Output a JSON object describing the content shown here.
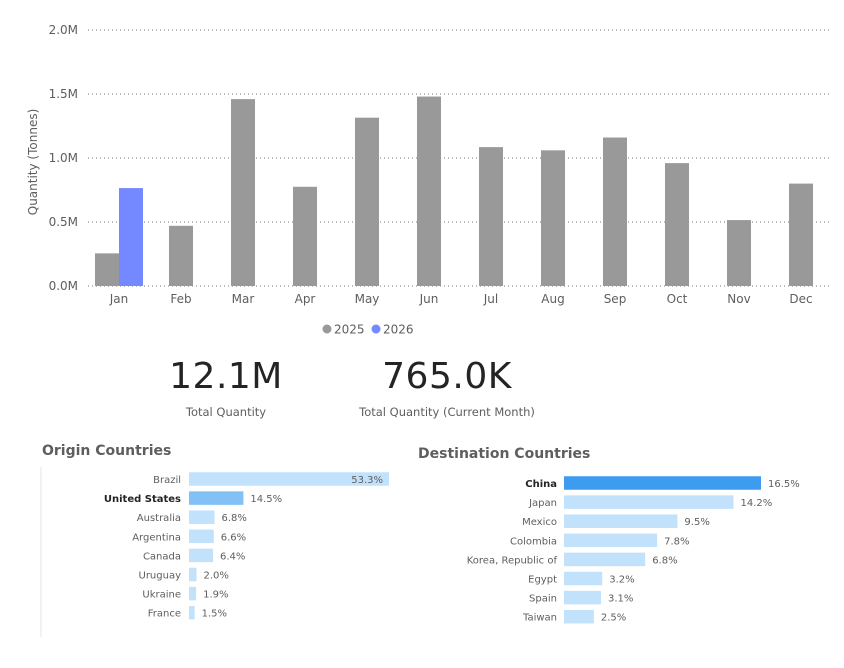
{
  "chart_data": [
    {
      "type": "bar",
      "ylabel": "Quantity (Tonnes)",
      "ylim": [
        0,
        2000000
      ],
      "yticks": [
        "0.0M",
        "0.5M",
        "1.0M",
        "1.5M",
        "2.0M"
      ],
      "grid": true,
      "legend_position": "bottom",
      "categories": [
        "Jan",
        "Feb",
        "Mar",
        "Apr",
        "May",
        "Jun",
        "Jul",
        "Aug",
        "Sep",
        "Oct",
        "Nov",
        "Dec"
      ],
      "series": [
        {
          "name": "2025",
          "color": "#999999",
          "values": [
            255000,
            470000,
            1460000,
            775000,
            1315000,
            1480000,
            1085000,
            1060000,
            1160000,
            960000,
            515000,
            800000
          ]
        },
        {
          "name": "2026",
          "color": "#7489ff",
          "values": [
            765000,
            null,
            null,
            null,
            null,
            null,
            null,
            null,
            null,
            null,
            null,
            null
          ]
        }
      ]
    },
    {
      "type": "bar",
      "orientation": "horizontal",
      "title": "Origin Countries",
      "categories": [
        "Brazil",
        "United States",
        "Australia",
        "Argentina",
        "Canada",
        "Uruguay",
        "Ukraine",
        "France"
      ],
      "values": [
        53.3,
        14.5,
        6.8,
        6.6,
        6.4,
        2.0,
        1.9,
        1.5
      ],
      "labels": [
        "53.3%",
        "14.5%",
        "6.8%",
        "6.6%",
        "6.4%",
        "2.0%",
        "1.9%",
        "1.5%"
      ],
      "highlight": "United States",
      "colors": {
        "normal": "#c2e2fc",
        "highlight": "#83c0f5"
      }
    },
    {
      "type": "bar",
      "orientation": "horizontal",
      "title": "Destination Countries",
      "categories": [
        "China",
        "Japan",
        "Mexico",
        "Colombia",
        "Korea, Republic of",
        "Egypt",
        "Spain",
        "Taiwan"
      ],
      "values": [
        16.5,
        14.2,
        9.5,
        7.8,
        6.8,
        3.2,
        3.1,
        2.5
      ],
      "labels": [
        "16.5%",
        "14.2%",
        "9.5%",
        "7.8%",
        "6.8%",
        "3.2%",
        "3.1%",
        "2.5%"
      ],
      "highlight": "China",
      "colors": {
        "normal": "#c2e2fc",
        "highlight": "#3d9bf0"
      }
    }
  ],
  "kpis": {
    "total": {
      "value": "12.1M",
      "label": "Total Quantity"
    },
    "current": {
      "value": "765.0K",
      "label": "Total Quantity (Current Month)"
    }
  }
}
